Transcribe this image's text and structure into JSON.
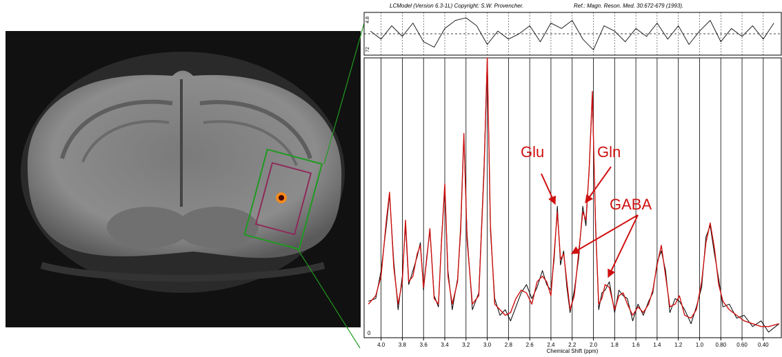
{
  "header": {
    "left": "LCModel (Version 6.3-1L) Copyright: S.W. Provencher.",
    "right": "Ref.: Magn. Reson. Med. 30:672-679 (1993)."
  },
  "chart_data": [
    {
      "type": "line",
      "residual_labels": [
        "4.8",
        "72"
      ],
      "x": [
        4.1,
        4.0,
        3.9,
        3.8,
        3.7,
        3.6,
        3.5,
        3.4,
        3.3,
        3.2,
        3.1,
        3.0,
        2.9,
        2.8,
        2.7,
        2.6,
        2.5,
        2.4,
        2.3,
        2.2,
        2.1,
        2.0,
        1.9,
        1.8,
        1.7,
        1.6,
        1.5,
        1.4,
        1.3,
        1.2,
        1.1,
        1.0,
        0.9,
        0.8,
        0.7,
        0.6,
        0.5,
        0.4,
        0.3
      ],
      "series": [
        {
          "color": "#222222",
          "values": [
            1,
            -2,
            3,
            -1,
            4,
            -3,
            -5,
            2,
            5,
            6,
            3,
            -4,
            1,
            -2,
            0,
            3,
            -3,
            4,
            2,
            5,
            -2,
            -6,
            3,
            1,
            -3,
            2,
            -1,
            4,
            -2,
            3,
            -4,
            1,
            5,
            -3,
            2,
            -1,
            3,
            -2,
            4
          ]
        }
      ],
      "xlim": [
        4.16,
        0.23
      ],
      "ylim": [
        -8,
        8
      ]
    },
    {
      "type": "line",
      "x_label": "Chemical Shift (ppm)",
      "x": [
        4.12,
        4.05,
        4.0,
        3.95,
        3.92,
        3.88,
        3.84,
        3.8,
        3.77,
        3.74,
        3.7,
        3.66,
        3.63,
        3.6,
        3.57,
        3.54,
        3.5,
        3.46,
        3.43,
        3.4,
        3.37,
        3.33,
        3.28,
        3.25,
        3.22,
        3.19,
        3.14,
        3.08,
        3.03,
        3.0,
        2.97,
        2.93,
        2.88,
        2.83,
        2.78,
        2.73,
        2.68,
        2.63,
        2.58,
        2.53,
        2.48,
        2.44,
        2.4,
        2.37,
        2.34,
        2.31,
        2.28,
        2.25,
        2.22,
        2.18,
        2.14,
        2.1,
        2.07,
        2.04,
        2.01,
        1.98,
        1.95,
        1.92,
        1.89,
        1.85,
        1.8,
        1.76,
        1.72,
        1.68,
        1.63,
        1.58,
        1.53,
        1.48,
        1.44,
        1.4,
        1.36,
        1.32,
        1.28,
        1.23,
        1.19,
        1.14,
        1.08,
        1.03,
        0.98,
        0.94,
        0.9,
        0.86,
        0.82,
        0.78,
        0.72,
        0.65,
        0.58,
        0.5,
        0.42,
        0.35,
        0.25
      ],
      "series": [
        {
          "color": "#000000",
          "values": [
            13,
            14,
            24,
            40,
            51,
            27,
            10,
            22,
            40,
            19,
            24,
            29,
            34,
            17,
            29,
            38,
            15,
            11,
            36,
            54,
            24,
            10,
            21,
            38,
            72,
            37,
            10,
            16,
            62,
            100,
            38,
            14,
            8,
            10,
            6,
            11,
            16,
            19,
            14,
            18,
            24,
            19,
            17,
            28,
            47,
            26,
            31,
            18,
            9,
            17,
            28,
            47,
            40,
            61,
            86,
            42,
            10,
            16,
            17,
            20,
            9,
            17,
            15,
            14,
            6,
            12,
            8,
            13,
            16,
            27,
            31,
            24,
            9,
            14,
            13,
            10,
            5,
            11,
            18,
            36,
            40,
            30,
            21,
            11,
            12,
            7,
            8,
            4,
            6,
            2,
            5
          ]
        },
        {
          "color": "#cc1010",
          "values": [
            12,
            15,
            22,
            42,
            52,
            25,
            12,
            20,
            42,
            20,
            22,
            30,
            33,
            18,
            28,
            39,
            14,
            12,
            35,
            55,
            22,
            12,
            20,
            40,
            73,
            35,
            12,
            15,
            60,
            100,
            40,
            12,
            10,
            8,
            9,
            14,
            17,
            16,
            12,
            20,
            22,
            20,
            15,
            30,
            45,
            28,
            30,
            20,
            10,
            15,
            30,
            45,
            42,
            60,
            88,
            40,
            12,
            14,
            19,
            18,
            10,
            15,
            16,
            12,
            8,
            11,
            9,
            12,
            17,
            26,
            33,
            22,
            11,
            12,
            15,
            8,
            7,
            10,
            20,
            34,
            41,
            32,
            19,
            13,
            10,
            8,
            6,
            5,
            4,
            4,
            5
          ]
        }
      ],
      "xlim": [
        4.16,
        0.23
      ],
      "ylim": [
        0,
        100
      ],
      "xticks": [
        {
          "value": 4,
          "label": "4.0"
        },
        3.8,
        3.6,
        3.4,
        3.2,
        {
          "value": 3,
          "label": "3.0"
        },
        2.8,
        2.6,
        2.4,
        2.2,
        {
          "value": 2,
          "label": "2.0"
        },
        1.8,
        1.6,
        1.4,
        1.2,
        {
          "value": 1,
          "label": "1.0"
        },
        {
          "value": 0.8,
          "label": "0.80"
        },
        {
          "value": 0.6,
          "label": "0.60"
        },
        {
          "value": 0.4,
          "label": "0.40"
        }
      ],
      "yticks": [
        0
      ],
      "grid": true,
      "annotations": [
        "Glu",
        "Gln",
        "GABA"
      ]
    }
  ]
}
